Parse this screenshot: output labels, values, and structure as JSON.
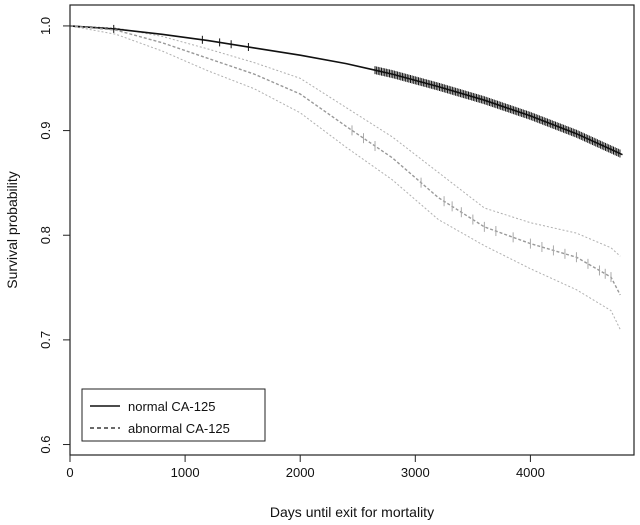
{
  "chart_data": {
    "type": "line",
    "title": "",
    "xlabel": "Days until exit for mortality",
    "ylabel": "Survival probability",
    "xlim": [
      0,
      4900
    ],
    "ylim": [
      0.59,
      1.02
    ],
    "x_ticks": [
      0,
      1000,
      2000,
      3000,
      4000
    ],
    "y_ticks": [
      0.6,
      0.7,
      0.8,
      0.9,
      1.0
    ],
    "x_tick_labels": [
      "0",
      "1000",
      "2000",
      "3000",
      "4000"
    ],
    "y_tick_labels": [
      "0.6",
      "0.7",
      "0.8",
      "0.9",
      "1.0"
    ],
    "grid": false,
    "legend_position": "bottom-left",
    "series": [
      {
        "name": "normal CA-125",
        "style": "solid",
        "color": "#111111",
        "x": [
          0,
          400,
          800,
          1200,
          1600,
          2000,
          2400,
          2800,
          3200,
          3600,
          4000,
          4400,
          4700,
          4800
        ],
        "y": [
          1.0,
          0.997,
          0.992,
          0.986,
          0.979,
          0.972,
          0.964,
          0.954,
          0.942,
          0.929,
          0.914,
          0.897,
          0.882,
          0.877
        ]
      },
      {
        "name": "abnormal CA-125",
        "style": "dashed",
        "color": "#999999",
        "x": [
          0,
          400,
          800,
          1200,
          1600,
          2000,
          2400,
          2800,
          3200,
          3600,
          4000,
          4400,
          4700,
          4780
        ],
        "y": [
          1.0,
          0.996,
          0.984,
          0.969,
          0.954,
          0.935,
          0.904,
          0.874,
          0.836,
          0.808,
          0.792,
          0.779,
          0.76,
          0.743
        ]
      }
    ],
    "confidence_band_abnormal": {
      "color": "#b0b0b0",
      "x": [
        0,
        400,
        800,
        1200,
        1600,
        2000,
        2400,
        2800,
        3200,
        3600,
        4000,
        4400,
        4700,
        4780
      ],
      "upper": [
        1.0,
        0.998,
        0.99,
        0.978,
        0.965,
        0.95,
        0.922,
        0.894,
        0.86,
        0.826,
        0.812,
        0.802,
        0.788,
        0.78
      ],
      "lower": [
        1.0,
        0.992,
        0.976,
        0.957,
        0.94,
        0.917,
        0.884,
        0.853,
        0.815,
        0.79,
        0.768,
        0.748,
        0.728,
        0.71
      ]
    }
  }
}
